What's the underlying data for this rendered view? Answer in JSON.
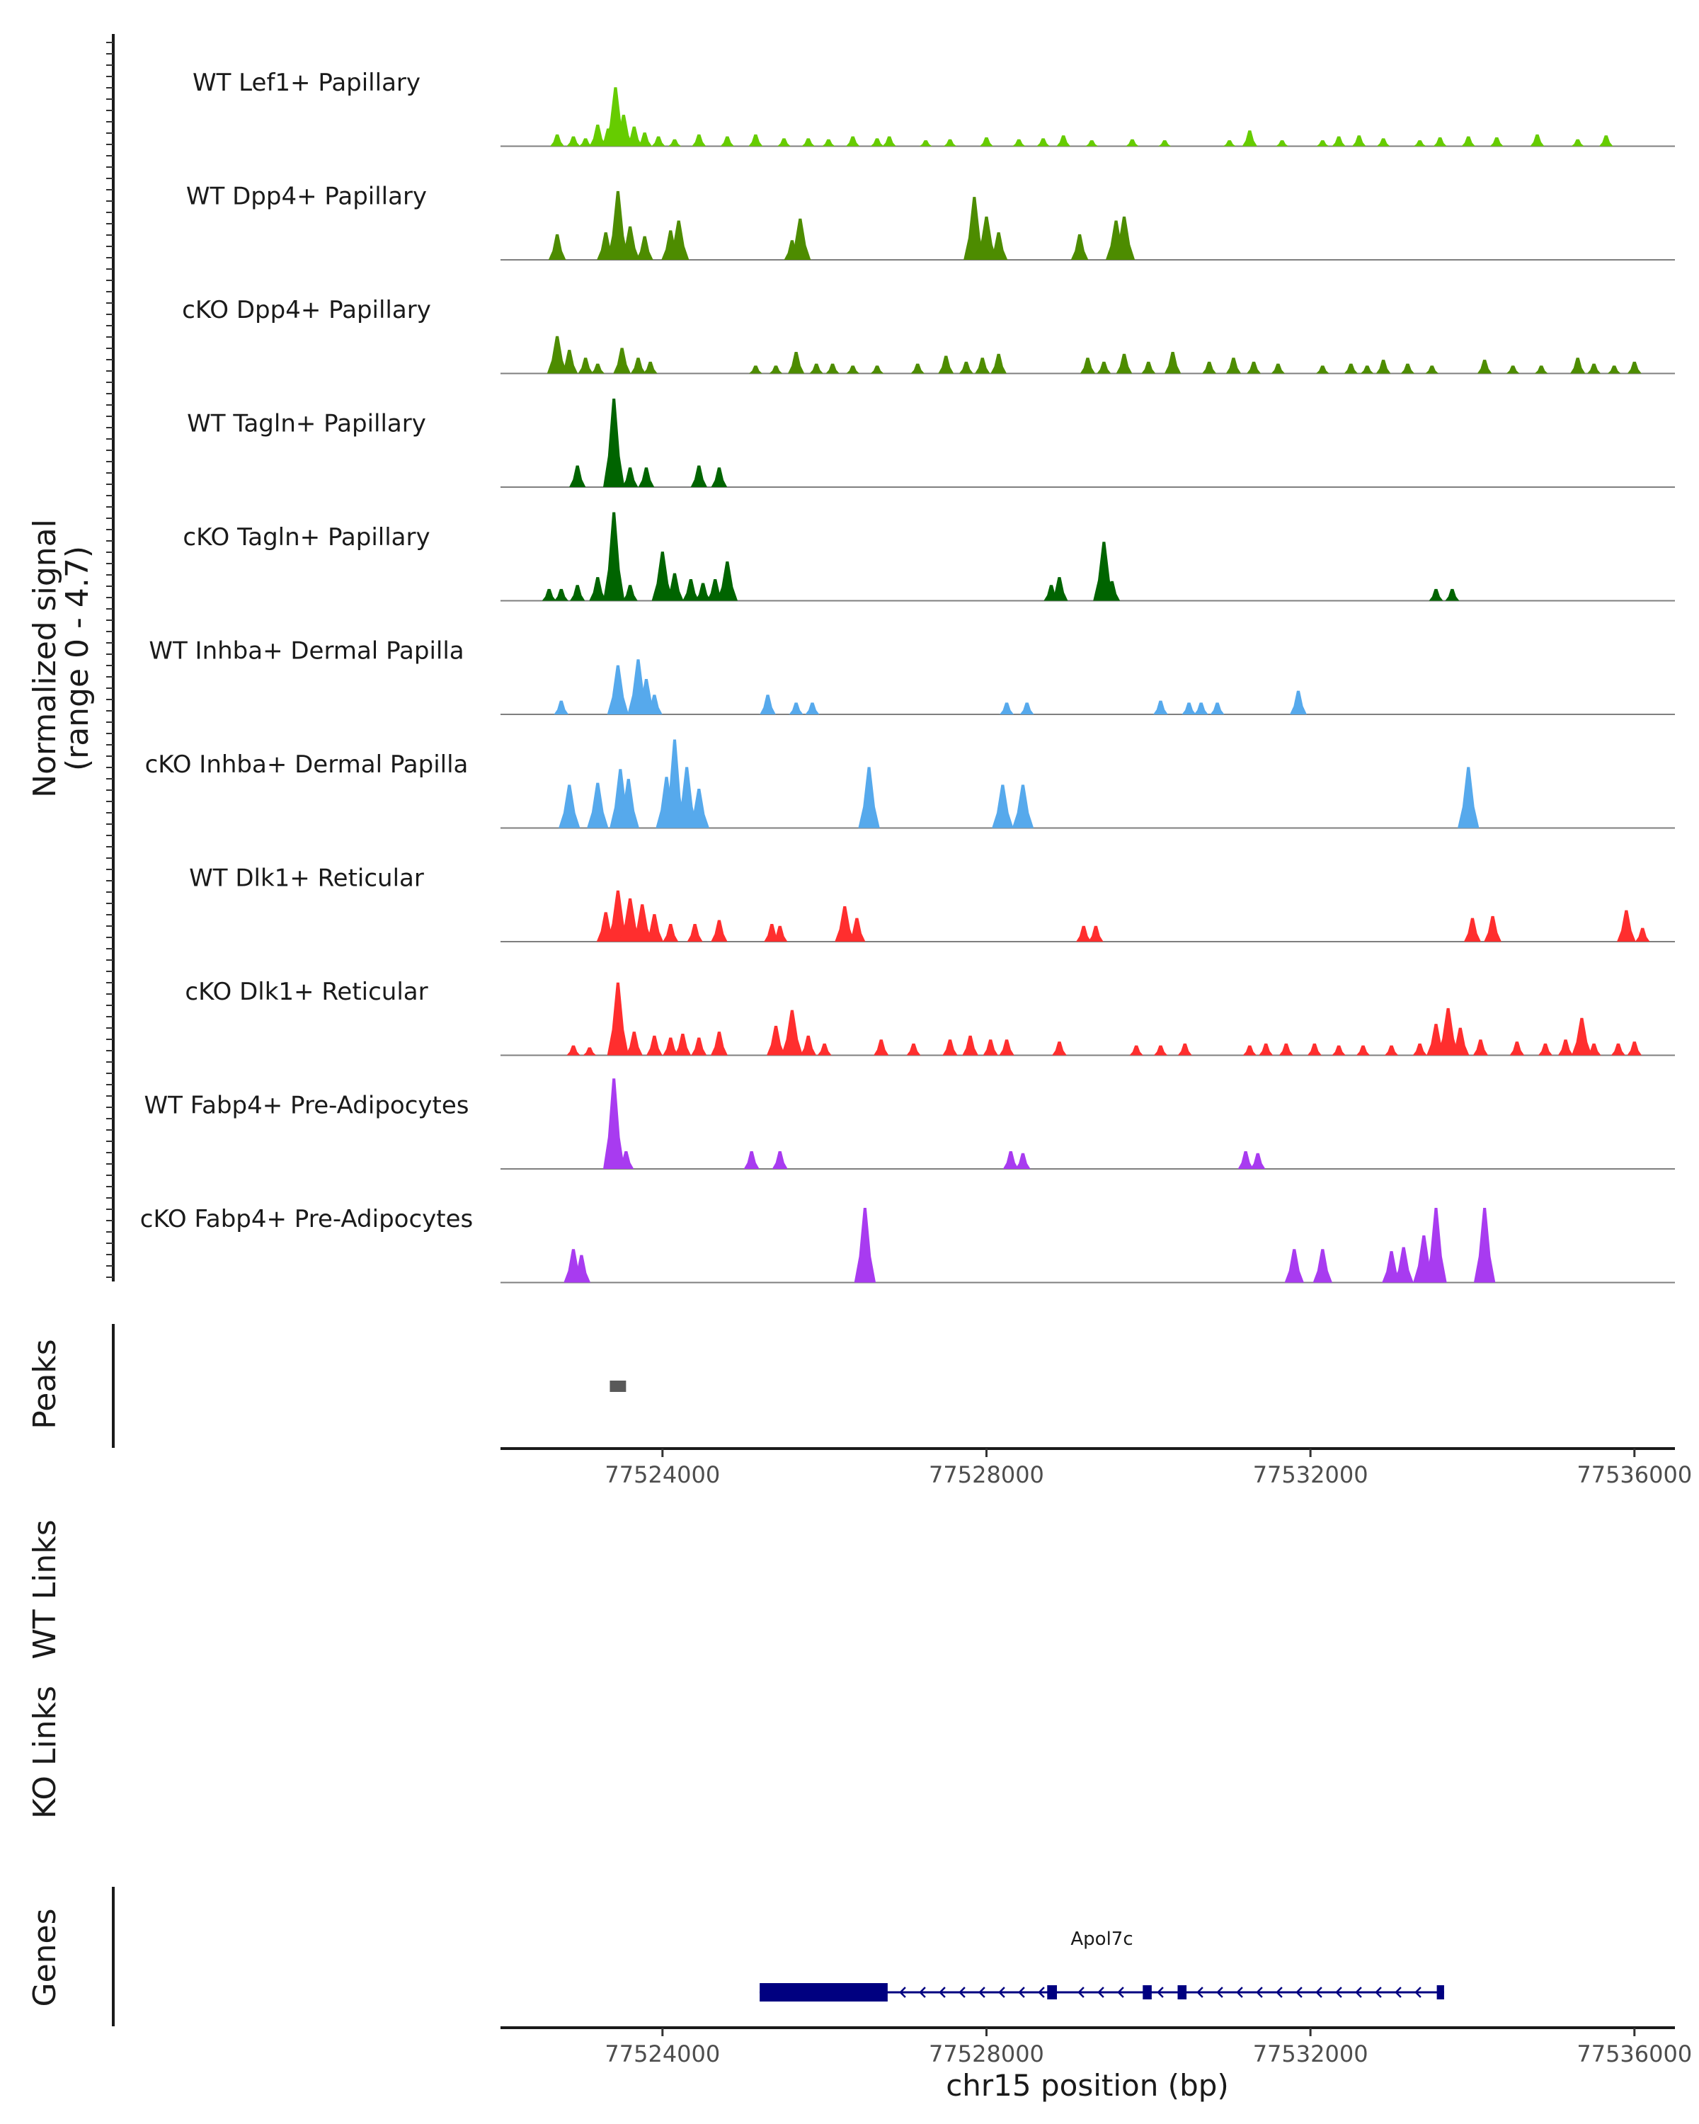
{
  "chart_data": {
    "type": "area",
    "title": "",
    "chromosome": "chr15",
    "xlabel": "chr15 position (bp)",
    "xlim": [
      77522000,
      77536500
    ],
    "xticks": [
      77524000,
      77528000,
      77532000,
      77536000
    ],
    "signal_axis": {
      "title_line1": "Normalized signal",
      "title_line2": "(range 0 - 4.7)",
      "ylim": [
        0,
        4.7
      ]
    },
    "tracks": [
      {
        "name": "WT Lef1+ Papillary",
        "color": "#66cc00",
        "peaks": [
          [
            77522700,
            0.6
          ],
          [
            77522900,
            0.5
          ],
          [
            77523050,
            0.4
          ],
          [
            77523200,
            1.1
          ],
          [
            77523330,
            0.9
          ],
          [
            77523420,
            3.0
          ],
          [
            77523520,
            1.6
          ],
          [
            77523650,
            1.0
          ],
          [
            77523780,
            0.7
          ],
          [
            77523950,
            0.5
          ],
          [
            77524150,
            0.35
          ],
          [
            77524450,
            0.6
          ],
          [
            77524800,
            0.5
          ],
          [
            77525150,
            0.6
          ],
          [
            77525500,
            0.4
          ],
          [
            77525800,
            0.4
          ],
          [
            77526050,
            0.35
          ],
          [
            77526350,
            0.5
          ],
          [
            77526650,
            0.4
          ],
          [
            77526800,
            0.5
          ],
          [
            77527250,
            0.3
          ],
          [
            77527550,
            0.35
          ],
          [
            77528000,
            0.45
          ],
          [
            77528400,
            0.35
          ],
          [
            77528700,
            0.4
          ],
          [
            77528950,
            0.55
          ],
          [
            77529300,
            0.3
          ],
          [
            77529800,
            0.35
          ],
          [
            77530200,
            0.3
          ],
          [
            77531000,
            0.3
          ],
          [
            77531250,
            0.8
          ],
          [
            77531650,
            0.3
          ],
          [
            77532150,
            0.3
          ],
          [
            77532350,
            0.5
          ],
          [
            77532600,
            0.55
          ],
          [
            77532900,
            0.4
          ],
          [
            77533350,
            0.3
          ],
          [
            77533600,
            0.45
          ],
          [
            77533950,
            0.5
          ],
          [
            77534300,
            0.45
          ],
          [
            77534800,
            0.6
          ],
          [
            77535300,
            0.35
          ],
          [
            77535650,
            0.55
          ]
        ]
      },
      {
        "name": "WT Dpp4+ Papillary",
        "color": "#4d8c00",
        "peaks": [
          [
            77522700,
            1.3
          ],
          [
            77523300,
            1.4
          ],
          [
            77523450,
            3.5
          ],
          [
            77523600,
            1.7
          ],
          [
            77523780,
            1.2
          ],
          [
            77524100,
            1.5
          ],
          [
            77524200,
            2.0
          ],
          [
            77525700,
            2.1
          ],
          [
            77525600,
            1.0
          ],
          [
            77527850,
            3.2
          ],
          [
            77528000,
            2.2
          ],
          [
            77528150,
            1.4
          ],
          [
            77529150,
            1.3
          ],
          [
            77529600,
            2.0
          ],
          [
            77529700,
            2.2
          ]
        ]
      },
      {
        "name": "cKO Dpp4+ Papillary",
        "color": "#4d8c00",
        "peaks": [
          [
            77522700,
            1.9
          ],
          [
            77522850,
            1.2
          ],
          [
            77523050,
            0.8
          ],
          [
            77523200,
            0.5
          ],
          [
            77523500,
            1.3
          ],
          [
            77523700,
            0.8
          ],
          [
            77523850,
            0.6
          ],
          [
            77525150,
            0.4
          ],
          [
            77525400,
            0.4
          ],
          [
            77525650,
            1.1
          ],
          [
            77525900,
            0.5
          ],
          [
            77526100,
            0.5
          ],
          [
            77526350,
            0.4
          ],
          [
            77526650,
            0.4
          ],
          [
            77527150,
            0.5
          ],
          [
            77527500,
            0.9
          ],
          [
            77527750,
            0.6
          ],
          [
            77527950,
            0.8
          ],
          [
            77528150,
            1.0
          ],
          [
            77529250,
            0.8
          ],
          [
            77529450,
            0.6
          ],
          [
            77529700,
            1.0
          ],
          [
            77530000,
            0.6
          ],
          [
            77530300,
            1.1
          ],
          [
            77530750,
            0.6
          ],
          [
            77531050,
            0.8
          ],
          [
            77531300,
            0.6
          ],
          [
            77531600,
            0.5
          ],
          [
            77532150,
            0.4
          ],
          [
            77532500,
            0.5
          ],
          [
            77532700,
            0.4
          ],
          [
            77532900,
            0.7
          ],
          [
            77533200,
            0.5
          ],
          [
            77533500,
            0.4
          ],
          [
            77534150,
            0.7
          ],
          [
            77534500,
            0.4
          ],
          [
            77534850,
            0.4
          ],
          [
            77535300,
            0.8
          ],
          [
            77535500,
            0.5
          ],
          [
            77535750,
            0.4
          ],
          [
            77536000,
            0.6
          ]
        ]
      },
      {
        "name": "WT Tagln+ Papillary",
        "color": "#006400",
        "peaks": [
          [
            77522950,
            1.1
          ],
          [
            77523400,
            4.5
          ],
          [
            77523600,
            1.0
          ],
          [
            77523800,
            1.0
          ],
          [
            77524450,
            1.1
          ],
          [
            77524700,
            1.0
          ]
        ]
      },
      {
        "name": "cKO Tagln+ Papillary",
        "color": "#006400",
        "peaks": [
          [
            77522600,
            0.6
          ],
          [
            77522750,
            0.6
          ],
          [
            77522950,
            0.8
          ],
          [
            77523200,
            1.2
          ],
          [
            77523400,
            4.5
          ],
          [
            77523600,
            0.8
          ],
          [
            77524000,
            2.5
          ],
          [
            77524150,
            1.4
          ],
          [
            77524350,
            1.1
          ],
          [
            77524500,
            0.9
          ],
          [
            77524650,
            1.1
          ],
          [
            77524800,
            2.0
          ],
          [
            77528800,
            0.8
          ],
          [
            77528900,
            1.2
          ],
          [
            77529450,
            3.0
          ],
          [
            77529550,
            1.0
          ],
          [
            77533550,
            0.6
          ],
          [
            77533750,
            0.6
          ]
        ]
      },
      {
        "name": "WT Inhba+ Dermal Papilla",
        "color": "#56a9ec",
        "peaks": [
          [
            77522750,
            0.7
          ],
          [
            77523450,
            2.5
          ],
          [
            77523700,
            2.8
          ],
          [
            77523800,
            1.8
          ],
          [
            77523900,
            1.0
          ],
          [
            77525300,
            1.0
          ],
          [
            77525650,
            0.6
          ],
          [
            77525850,
            0.6
          ],
          [
            77528250,
            0.6
          ],
          [
            77528500,
            0.6
          ],
          [
            77530150,
            0.7
          ],
          [
            77530500,
            0.6
          ],
          [
            77530650,
            0.6
          ],
          [
            77530850,
            0.6
          ],
          [
            77531850,
            1.2
          ]
        ]
      },
      {
        "name": "cKO Inhba+ Dermal Papilla",
        "color": "#56a9ec",
        "peaks": [
          [
            77522850,
            2.2
          ],
          [
            77523200,
            2.3
          ],
          [
            77523480,
            3.0
          ],
          [
            77523580,
            2.5
          ],
          [
            77524050,
            2.6
          ],
          [
            77524150,
            4.5
          ],
          [
            77524300,
            3.1
          ],
          [
            77524450,
            2.0
          ],
          [
            77526550,
            3.1
          ],
          [
            77528200,
            2.2
          ],
          [
            77528450,
            2.2
          ],
          [
            77533950,
            3.1
          ]
        ]
      },
      {
        "name": "WT Dlk1+ Reticular",
        "color": "#ff2e2e",
        "peaks": [
          [
            77523300,
            1.5
          ],
          [
            77523450,
            2.6
          ],
          [
            77523600,
            2.2
          ],
          [
            77523750,
            1.9
          ],
          [
            77523900,
            1.4
          ],
          [
            77524100,
            0.9
          ],
          [
            77524400,
            0.9
          ],
          [
            77524700,
            1.1
          ],
          [
            77525350,
            0.9
          ],
          [
            77525450,
            0.8
          ],
          [
            77526250,
            1.8
          ],
          [
            77526400,
            1.2
          ],
          [
            77529200,
            0.8
          ],
          [
            77529350,
            0.8
          ],
          [
            77534000,
            1.2
          ],
          [
            77534250,
            1.3
          ],
          [
            77535900,
            1.6
          ],
          [
            77536100,
            0.7
          ]
        ]
      },
      {
        "name": "cKO Dlk1+ Reticular",
        "color": "#ff2e2e",
        "peaks": [
          [
            77522900,
            0.5
          ],
          [
            77523100,
            0.4
          ],
          [
            77523450,
            3.7
          ],
          [
            77523650,
            1.2
          ],
          [
            77523900,
            1.0
          ],
          [
            77524100,
            0.9
          ],
          [
            77524250,
            1.1
          ],
          [
            77524450,
            0.9
          ],
          [
            77524700,
            1.2
          ],
          [
            77525400,
            1.5
          ],
          [
            77525600,
            2.3
          ],
          [
            77525800,
            1.0
          ],
          [
            77526000,
            0.6
          ],
          [
            77526700,
            0.8
          ],
          [
            77527100,
            0.6
          ],
          [
            77527550,
            0.8
          ],
          [
            77527800,
            1.0
          ],
          [
            77528050,
            0.8
          ],
          [
            77528250,
            0.8
          ],
          [
            77528900,
            0.7
          ],
          [
            77529850,
            0.5
          ],
          [
            77530150,
            0.5
          ],
          [
            77530450,
            0.6
          ],
          [
            77531250,
            0.5
          ],
          [
            77531450,
            0.6
          ],
          [
            77531700,
            0.6
          ],
          [
            77532050,
            0.6
          ],
          [
            77532350,
            0.5
          ],
          [
            77532650,
            0.5
          ],
          [
            77533000,
            0.5
          ],
          [
            77533350,
            0.6
          ],
          [
            77533550,
            1.6
          ],
          [
            77533700,
            2.4
          ],
          [
            77533850,
            1.4
          ],
          [
            77534100,
            0.8
          ],
          [
            77534550,
            0.7
          ],
          [
            77534900,
            0.6
          ],
          [
            77535150,
            0.8
          ],
          [
            77535350,
            1.9
          ],
          [
            77535500,
            0.6
          ],
          [
            77535800,
            0.6
          ],
          [
            77536000,
            0.7
          ]
        ]
      },
      {
        "name": "WT Fabp4+ Pre-Adipocytes",
        "color": "#a83bf0",
        "peaks": [
          [
            77523400,
            4.6
          ],
          [
            77523550,
            0.9
          ],
          [
            77525100,
            0.9
          ],
          [
            77525450,
            0.9
          ],
          [
            77528300,
            0.9
          ],
          [
            77528450,
            0.8
          ],
          [
            77531200,
            0.9
          ],
          [
            77531350,
            0.8
          ]
        ]
      },
      {
        "name": "cKO Fabp4+ Pre-Adipocytes",
        "color": "#a83bf0",
        "peaks": [
          [
            77522900,
            1.7
          ],
          [
            77523000,
            1.4
          ],
          [
            77526500,
            3.8
          ],
          [
            77531800,
            1.7
          ],
          [
            77532150,
            1.7
          ],
          [
            77533000,
            1.6
          ],
          [
            77533150,
            1.8
          ],
          [
            77533400,
            2.4
          ],
          [
            77533550,
            3.8
          ],
          [
            77534150,
            3.8
          ]
        ]
      }
    ],
    "peaks_track": {
      "label": "Peaks",
      "regions": [
        [
          77523350,
          77523550
        ]
      ],
      "color": "#595959"
    },
    "links_tracks": [
      {
        "label": "WT Links"
      },
      {
        "label": "KO Links"
      }
    ],
    "genes_track": {
      "label": "Genes",
      "color": "#000080",
      "genes": [
        {
          "name": "Apol7c",
          "start": 77525200,
          "end": 77533650,
          "strand": "-",
          "exons": [
            [
              77525200,
              77526780
            ],
            [
              77528750,
              77528870
            ],
            [
              77529930,
              77530040
            ],
            [
              77530360,
              77530470
            ],
            [
              77533560,
              77533650
            ]
          ]
        }
      ]
    }
  }
}
